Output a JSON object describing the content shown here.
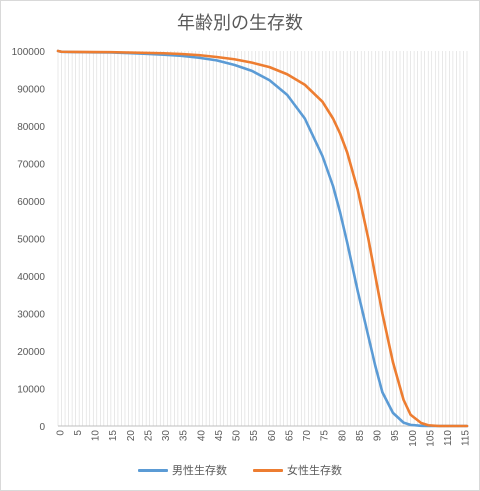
{
  "chart_data": {
    "type": "line",
    "title": "年齢別の生存数",
    "xlabel": "",
    "ylabel": "",
    "x_tick_labels": [
      "0",
      "5",
      "10",
      "15",
      "20",
      "25",
      "30",
      "35",
      "40",
      "45",
      "50",
      "55",
      "60",
      "65",
      "70",
      "75",
      "80",
      "85",
      "90",
      "95",
      "100",
      "105",
      "110",
      "115"
    ],
    "y_tick_labels": [
      "0",
      "10000",
      "20000",
      "30000",
      "40000",
      "50000",
      "60000",
      "70000",
      "80000",
      "90000",
      "100000"
    ],
    "xlim": [
      0,
      116
    ],
    "ylim": [
      0,
      100000
    ],
    "grid": "vertical-per-category",
    "legend_position": "bottom",
    "series": [
      {
        "name": "男性生存数",
        "color": "#5b9bd5",
        "points": [
          [
            0,
            100000
          ],
          [
            1,
            99780
          ],
          [
            5,
            99700
          ],
          [
            10,
            99650
          ],
          [
            15,
            99600
          ],
          [
            20,
            99450
          ],
          [
            25,
            99250
          ],
          [
            30,
            99000
          ],
          [
            35,
            98700
          ],
          [
            40,
            98200
          ],
          [
            45,
            97500
          ],
          [
            50,
            96300
          ],
          [
            55,
            94700
          ],
          [
            60,
            92200
          ],
          [
            65,
            88300
          ],
          [
            70,
            82000
          ],
          [
            75,
            72000
          ],
          [
            78,
            64000
          ],
          [
            80,
            57000
          ],
          [
            82,
            49000
          ],
          [
            85,
            36000
          ],
          [
            88,
            24000
          ],
          [
            90,
            16000
          ],
          [
            92,
            9000
          ],
          [
            95,
            3500
          ],
          [
            98,
            900
          ],
          [
            100,
            300
          ],
          [
            103,
            50
          ],
          [
            105,
            5
          ],
          [
            110,
            0
          ],
          [
            116,
            0
          ]
        ]
      },
      {
        "name": "女性生存数",
        "color": "#ed7d31",
        "points": [
          [
            0,
            100000
          ],
          [
            1,
            99800
          ],
          [
            5,
            99750
          ],
          [
            10,
            99720
          ],
          [
            15,
            99700
          ],
          [
            20,
            99600
          ],
          [
            25,
            99500
          ],
          [
            30,
            99400
          ],
          [
            35,
            99200
          ],
          [
            40,
            98900
          ],
          [
            45,
            98400
          ],
          [
            50,
            97800
          ],
          [
            55,
            96900
          ],
          [
            60,
            95700
          ],
          [
            65,
            93800
          ],
          [
            70,
            91000
          ],
          [
            75,
            86500
          ],
          [
            78,
            82000
          ],
          [
            80,
            78000
          ],
          [
            82,
            73000
          ],
          [
            85,
            63000
          ],
          [
            88,
            50000
          ],
          [
            90,
            40000
          ],
          [
            92,
            30000
          ],
          [
            95,
            17000
          ],
          [
            98,
            7000
          ],
          [
            100,
            3000
          ],
          [
            103,
            800
          ],
          [
            105,
            200
          ],
          [
            108,
            0
          ],
          [
            116,
            0
          ]
        ]
      }
    ]
  }
}
